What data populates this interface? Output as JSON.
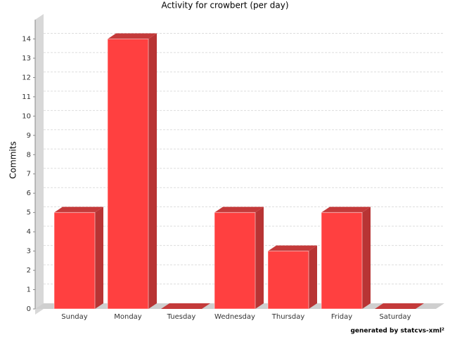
{
  "chart_data": {
    "type": "bar3d",
    "title": "Activity for crowbert (per day)",
    "y_label": "Commits",
    "categories": [
      "Sunday",
      "Monday",
      "Tuesday",
      "Wednesday",
      "Thursday",
      "Friday",
      "Saturday"
    ],
    "values": [
      5,
      14,
      0,
      5,
      3,
      5,
      0
    ],
    "color": "#ff4040",
    "ylim": [
      0,
      15
    ],
    "yticks": [
      0,
      1,
      2,
      3,
      4,
      5,
      6,
      7,
      8,
      9,
      10,
      11,
      12,
      13,
      14
    ],
    "grid": true,
    "footer": "generated by statcvs-xml²"
  }
}
